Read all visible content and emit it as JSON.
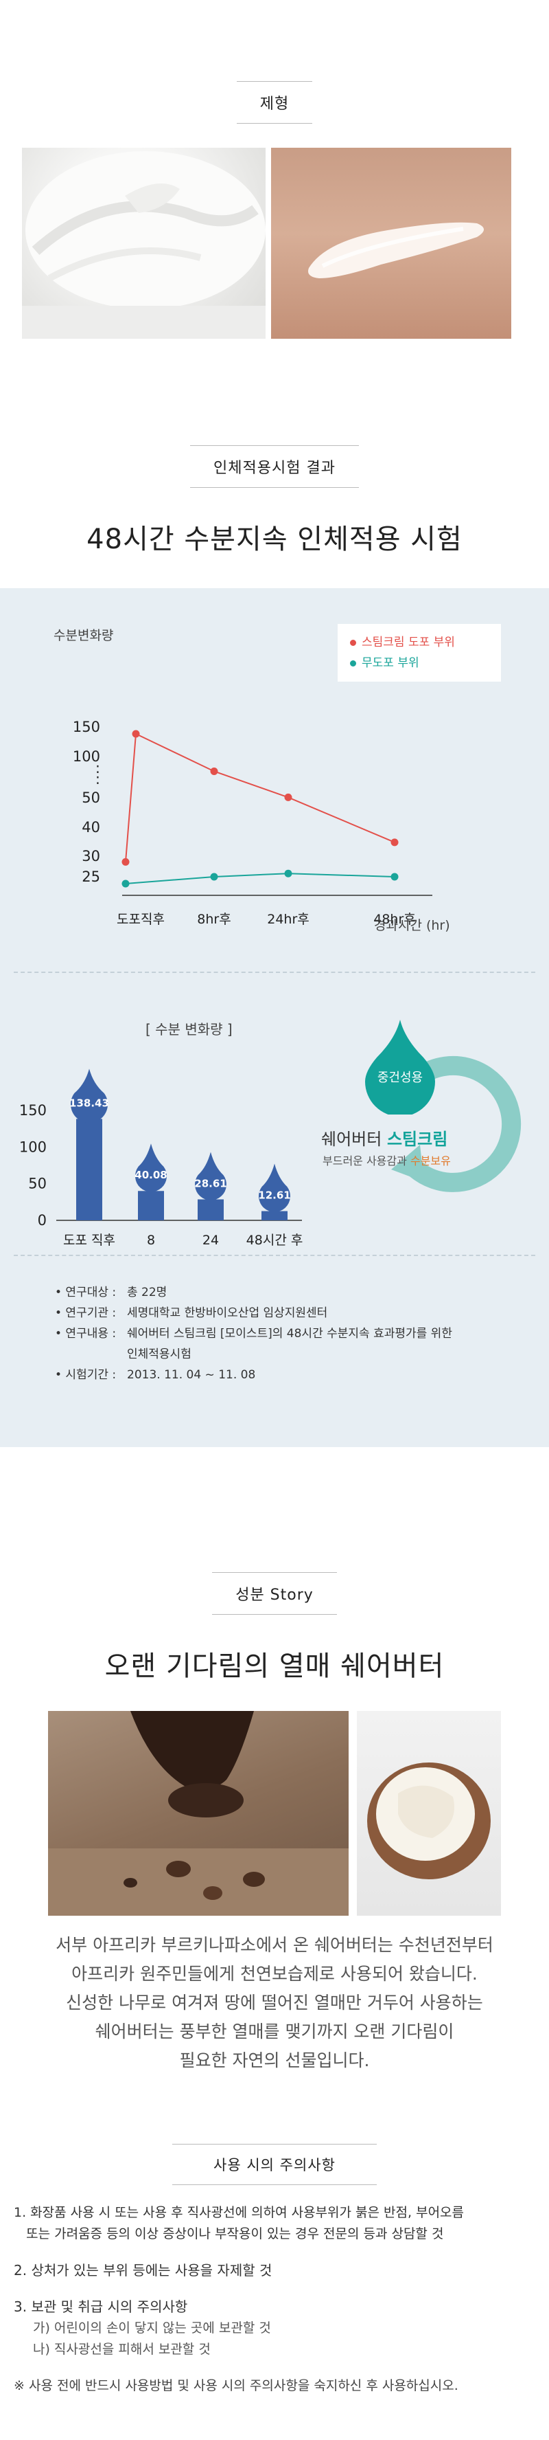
{
  "texture": {
    "tag": "제형"
  },
  "clinical": {
    "tag": "인체적용시험 결과",
    "headline": "48시간 수분지속 인체적용 시험"
  },
  "line_chart": {
    "ylabel": "수분변화량",
    "xlabel": "경과시간 (hr)",
    "legend": [
      {
        "label": "스팀크림 도포 부위",
        "color": "#e3504a"
      },
      {
        "label": "무도포 부위",
        "color": "#1aa59a"
      }
    ]
  },
  "bar_chart": {
    "title": "[ 수분 변화량 ]"
  },
  "badge": {
    "circle_text": "중건성용",
    "brand_plain": "쉐어버터 ",
    "brand_accent": "스팀크림",
    "tagline_plain": "부드러운 사용감과 ",
    "tagline_accent": "수분보유"
  },
  "study_info": [
    {
      "key": "• 연구대상 :",
      "value": "총 22명"
    },
    {
      "key": "• 연구기관 :",
      "value": "세명대학교 한방바이오산업 임상지원센터"
    },
    {
      "key": "• 연구내용 :",
      "value": "쉐어버터 스팀크림 [모이스트]의 48시간 수분지속 효과평가를 위한"
    },
    {
      "key": "",
      "value": "인체적용시험"
    },
    {
      "key": "• 시험기간 :",
      "value": "2013. 11. 04 ~ 11. 08"
    }
  ],
  "story": {
    "tag": "성분 Story",
    "headline": "오랜 기다림의 열매 쉐어버터",
    "paragraph": [
      "서부 아프리카 부르키나파소에서 온 쉐어버터는 수천년전부터",
      "아프리카 원주민들에게 천연보습제로 사용되어 왔습니다.",
      "신성한 나무로 여겨져 땅에 떨어진 열매만 거두어 사용하는",
      "쉐어버터는 풍부한 열매를 맺기까지 오랜 기다림이",
      "필요한 자연의 선물입니다."
    ]
  },
  "cautions": {
    "tag": "사용 시의 주의사항",
    "item1_line1": "1. 화장품 사용 시 또는 사용 후 직사광선에 의하여 사용부위가 붉은 반점, 부어오름",
    "item1_line2": "   또는 가려움증 등의 이상 증상이나 부작용이 있는 경우 전문의 등과 상담할 것",
    "item2": "2. 상처가 있는 부위 등에는 사용을 자제할 것",
    "item3": "3. 보관 및 취급 시의 주의사항",
    "item3a": "가) 어린이의 손이 닿지 않는 곳에 보관할 것",
    "item3b": "나) 직사광선을 피해서 보관할 것",
    "footer": "※ 사용 전에 반드시 사용방법 및 사용 시의 주의사항을 숙지하신 후 사용하십시오."
  },
  "chart_data": [
    {
      "type": "line",
      "title": "",
      "xlabel": "경과시간 (hr)",
      "ylabel": "수분변화량",
      "categories": [
        "도포직후",
        "",
        "8hr후",
        "24hr후",
        "48hr후"
      ],
      "y_ticks": [
        "25",
        "30",
        "40",
        "50",
        ":",
        ":",
        "100",
        "150"
      ],
      "series": [
        {
          "name": "스팀크림 도포 부위",
          "color": "#e3504a",
          "values": [
            28.6,
            138.4,
            82.1,
            50.5,
            34.8
          ]
        },
        {
          "name": "무도포 부위",
          "color": "#1aa59a",
          "values": [
            23.0,
            null,
            25.0,
            25.8,
            25.0
          ]
        }
      ]
    },
    {
      "type": "bar",
      "title": "[ 수분 변화량 ]",
      "categories": [
        "도포 직후",
        "8",
        "24",
        "48시간 후"
      ],
      "values": [
        138.43,
        40.08,
        28.61,
        12.61
      ],
      "y_ticks": [
        "0",
        "50",
        "100",
        "150"
      ],
      "ylim": [
        0,
        150
      ],
      "color": "#3a62a8"
    }
  ]
}
